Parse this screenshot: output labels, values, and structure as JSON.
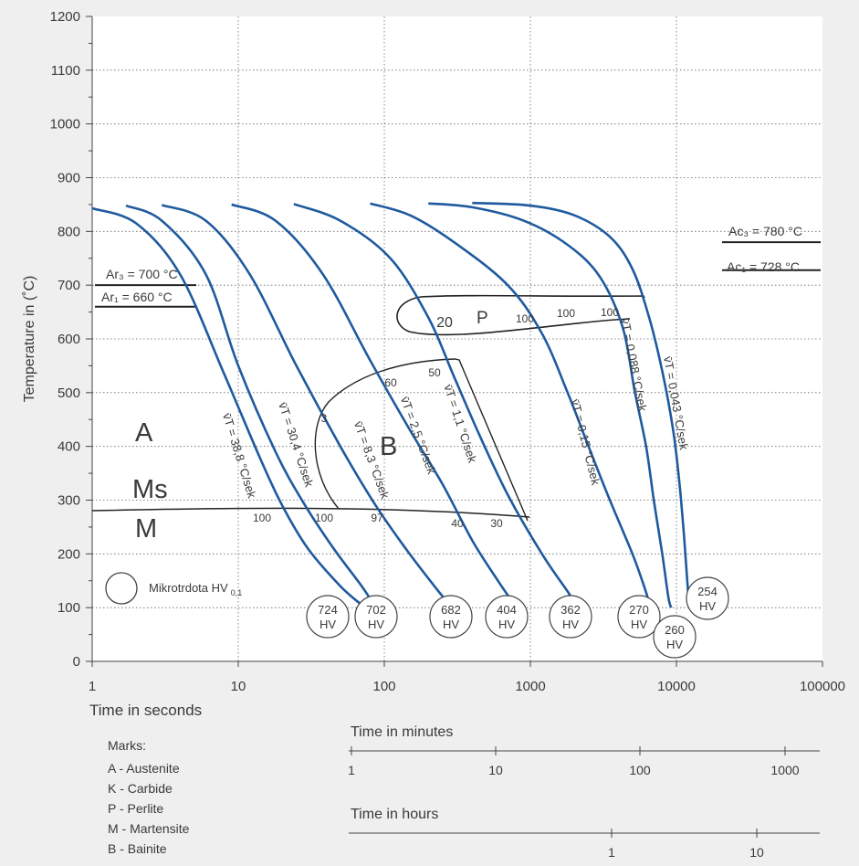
{
  "chart_data": {
    "type": "line",
    "xscale": "log",
    "x_min": 1,
    "x_max": 100000,
    "ylim": [
      0,
      1200
    ],
    "ylabel": "Temperature in (˚C)",
    "xlabel": "Time in seconds",
    "grid": true,
    "x_ticks": [
      1,
      10,
      100,
      1000,
      10000,
      100000
    ],
    "x_tick_labels": [
      "1",
      "10",
      "100",
      "1000",
      "10000",
      "100000"
    ],
    "y_ticks": [
      0,
      100,
      200,
      300,
      400,
      500,
      600,
      700,
      800,
      900,
      1000,
      1100,
      1200
    ],
    "y_tick_labels": [
      "0",
      "100",
      "200",
      "300",
      "400",
      "500",
      "600",
      "700",
      "800",
      "900",
      "1000",
      "1100",
      "1200"
    ],
    "series": [
      {
        "label": "v̄T = 38,8 °C/sek",
        "hardness": "724",
        "points": [
          [
            1,
            843
          ],
          [
            2,
            815
          ],
          [
            4,
            720
          ],
          [
            8,
            535
          ],
          [
            14,
            380
          ],
          [
            20,
            290
          ],
          [
            30,
            210
          ],
          [
            50,
            140
          ],
          [
            70,
            105
          ]
        ]
      },
      {
        "label": "v̄T = 30,4 °C/sek",
        "hardness": "702",
        "points": [
          [
            1.7,
            848
          ],
          [
            3,
            820
          ],
          [
            6,
            720
          ],
          [
            10,
            550
          ],
          [
            18,
            390
          ],
          [
            28,
            295
          ],
          [
            45,
            210
          ],
          [
            70,
            140
          ],
          [
            85,
            105
          ]
        ]
      },
      {
        "label": "v̄T = 8,3 °C/sek",
        "hardness": "682",
        "points": [
          [
            3,
            849
          ],
          [
            6,
            820
          ],
          [
            12,
            720
          ],
          [
            25,
            550
          ],
          [
            50,
            400
          ],
          [
            85,
            295
          ],
          [
            140,
            210
          ],
          [
            220,
            140
          ],
          [
            280,
            105
          ]
        ]
      },
      {
        "label": "v̄T = 2,5 °C/sek",
        "hardness": "404",
        "points": [
          [
            9,
            850
          ],
          [
            18,
            820
          ],
          [
            38,
            720
          ],
          [
            80,
            560
          ],
          [
            150,
            430
          ],
          [
            250,
            330
          ],
          [
            400,
            225
          ],
          [
            600,
            150
          ],
          [
            780,
            105
          ]
        ]
      },
      {
        "label": "v̄T = 1,1 °C/sek",
        "hardness": "362",
        "points": [
          [
            24,
            851
          ],
          [
            50,
            820
          ],
          [
            110,
            750
          ],
          [
            200,
            640
          ],
          [
            300,
            530
          ],
          [
            450,
            420
          ],
          [
            700,
            310
          ],
          [
            1200,
            200
          ],
          [
            1800,
            130
          ],
          [
            2000,
            110
          ]
        ]
      },
      {
        "label": "v̄T = 0,15 °C/sek",
        "hardness": "270",
        "points": [
          [
            80,
            852
          ],
          [
            150,
            830
          ],
          [
            300,
            780
          ],
          [
            700,
            700
          ],
          [
            1200,
            610
          ],
          [
            1800,
            500
          ],
          [
            2500,
            400
          ],
          [
            3500,
            300
          ],
          [
            5000,
            200
          ],
          [
            6000,
            140
          ],
          [
            6500,
            110
          ]
        ]
      },
      {
        "label": "v̄T = 0,088 °C/sek",
        "hardness": "260",
        "points": [
          [
            200,
            852
          ],
          [
            400,
            845
          ],
          [
            900,
            820
          ],
          [
            1800,
            775
          ],
          [
            3000,
            715
          ],
          [
            4300,
            620
          ],
          [
            5200,
            500
          ],
          [
            6200,
            400
          ],
          [
            7000,
            300
          ],
          [
            8000,
            200
          ],
          [
            8800,
            120
          ],
          [
            9200,
            100
          ]
        ]
      },
      {
        "label": "v̄T = 0,043 °C/sek",
        "hardness": "254",
        "points": [
          [
            400,
            853
          ],
          [
            1000,
            848
          ],
          [
            2000,
            830
          ],
          [
            3500,
            790
          ],
          [
            5000,
            730
          ],
          [
            6500,
            640
          ],
          [
            8000,
            540
          ],
          [
            9500,
            430
          ],
          [
            10500,
            330
          ],
          [
            11300,
            230
          ],
          [
            12000,
            130
          ],
          [
            12300,
            110
          ]
        ]
      }
    ],
    "hardness_marks": [
      "724",
      "702",
      "682",
      "404",
      "362",
      "270",
      "260",
      "254"
    ],
    "hardness_unit": "HV",
    "region_labels": [
      "A",
      "Ms",
      "M",
      "B",
      "P"
    ],
    "phase_percent_labels": [
      "100",
      "100",
      "97",
      "40",
      "30",
      "3",
      "60",
      "50",
      "20",
      "100",
      "100",
      "100"
    ],
    "ar3_label": "Ar₃ = 700 °C",
    "ar1_label": "Ar₁ = 660 °C",
    "ac3_label": "Ac₃ = 780 °C",
    "ac1_label": "Ac₁ = 728 °C",
    "legend_circle_label": "Mikrotrdota HV",
    "legend_circle_sub": "0,1",
    "minutes_axis": {
      "title": "Time in minutes",
      "ticks": [
        "1",
        "10",
        "100",
        "1000"
      ]
    },
    "hours_axis": {
      "title": "Time in hours",
      "ticks": [
        "1",
        "10"
      ]
    },
    "marks_title": "Marks:",
    "marks": [
      "A - Austenite",
      "K - Carbide",
      "P - Perlite",
      "M - Martensite",
      "B - Bainite"
    ],
    "colors": {
      "curve": "#1f5a9e",
      "background": "#efefef",
      "text": "#3a3a3a"
    }
  }
}
